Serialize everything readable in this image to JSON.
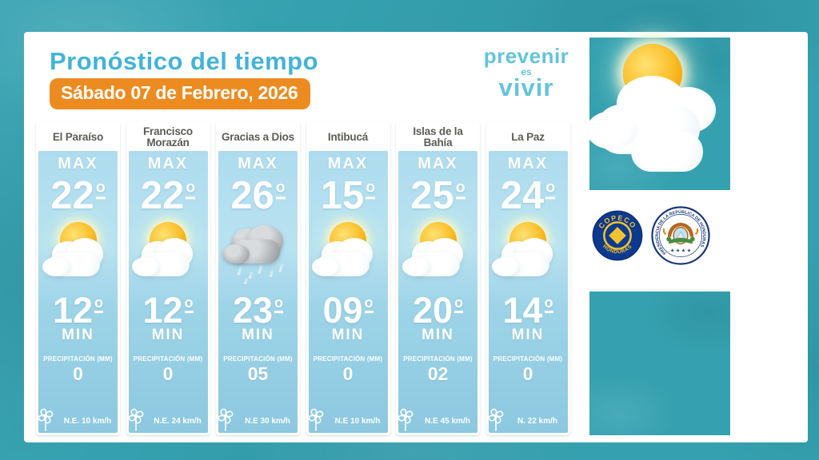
{
  "header": {
    "title": "Pronóstico del tiempo",
    "date_badge": "Sábado 07 de Febrero, 2026"
  },
  "brand": {
    "line1": "prevenir",
    "line2": "es",
    "line3": "vivir"
  },
  "forecast": {
    "max_label": "MAX",
    "min_label": "MIN",
    "precip_label": "PRECIPITACIÓN (MM)",
    "columns": [
      {
        "name": "El Paraíso",
        "max": "22",
        "min": "12",
        "icon": "sun-cloud",
        "precip": "0",
        "wind": "N.E. 10 km/h"
      },
      {
        "name": "Francisco Morazán",
        "max": "22",
        "min": "12",
        "icon": "sun-cloud",
        "precip": "0",
        "wind": "N.E.  24 km/h"
      },
      {
        "name": "Gracias a Dios",
        "max": "26",
        "min": "23",
        "icon": "rain-cloud",
        "precip": "05",
        "wind": "N.E 30 km/h"
      },
      {
        "name": "Intibucá",
        "max": "15",
        "min": "09",
        "icon": "sun-cloud",
        "precip": "0",
        "wind": "N.E 10 km/h"
      },
      {
        "name": "Islas de la Bahía",
        "max": "25",
        "min": "20",
        "icon": "sun-cloud",
        "precip": "02",
        "wind": "N.E 45 km/h"
      },
      {
        "name": "La Paz",
        "max": "24",
        "min": "14",
        "icon": "sun-cloud",
        "precip": "0",
        "wind": "N. 22 km/h"
      }
    ]
  },
  "seals": {
    "copeco": {
      "top_text": "COPECO",
      "bottom_text": "HONDURAS"
    },
    "presidencia": {
      "ring_text": "PRESIDENCIA DE LA REPÚBLICA DE HONDURAS"
    }
  },
  "colors": {
    "background_teal": "#35a1b0",
    "title_blue": "#43b3d7",
    "badge_orange": "#ec8b20",
    "column_blue": "#9ed4e8",
    "brand_blue": "#63c4dc",
    "header_text": "#5c5c57",
    "seal_navy": "#0d3a8f",
    "seal_gold": "#f2c230",
    "text_white": "#ffffff"
  }
}
